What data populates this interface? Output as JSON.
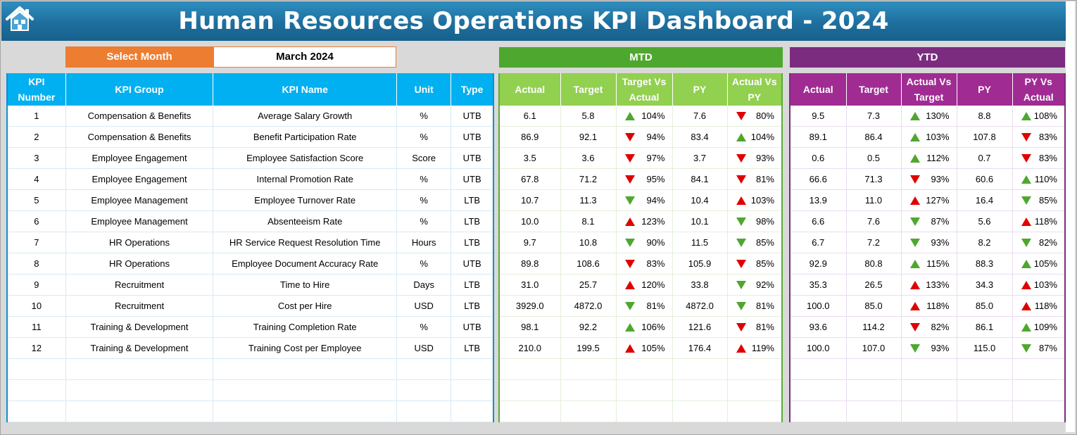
{
  "title": "Human Resources Operations KPI Dashboard - 2024",
  "home_icon": "home-icon",
  "select_month": {
    "label": "Select Month",
    "value": "March 2024"
  },
  "sections": {
    "mtd": "MTD",
    "ytd": "YTD"
  },
  "colors": {
    "title_bar": "#1e6f9e",
    "select_label": "#ed7d31",
    "info_header": "#00b0f0",
    "mtd_banner": "#4ea72e",
    "mtd_header": "#92d050",
    "ytd_banner": "#7b2c7f",
    "ytd_header": "#a02b93",
    "arrow_green": "#4ea72e",
    "arrow_red": "#e00000"
  },
  "info_headers": [
    "KPI Number",
    "KPI Group",
    "KPI Name",
    "Unit",
    "Type"
  ],
  "mtd_headers": [
    "Actual",
    "Target",
    "Target Vs Actual",
    "PY",
    "Actual Vs PY"
  ],
  "ytd_headers": [
    "Actual",
    "Target",
    "Actual Vs Target",
    "PY",
    "PY Vs Actual"
  ],
  "rows": [
    {
      "num": "1",
      "group": "Compensation & Benefits",
      "name": "Average Salary Growth",
      "unit": "%",
      "type": "UTB",
      "mtd": {
        "actual": "6.1",
        "target": "5.8",
        "tva": "104%",
        "tva_icon": "up-green",
        "py": "7.6",
        "avp": "80%",
        "avp_icon": "down-red"
      },
      "ytd": {
        "actual": "9.5",
        "target": "7.3",
        "avt": "130%",
        "avt_icon": "up-green",
        "py": "8.8",
        "pva": "108%",
        "pva_icon": "up-green"
      }
    },
    {
      "num": "2",
      "group": "Compensation & Benefits",
      "name": "Benefit Participation Rate",
      "unit": "%",
      "type": "UTB",
      "mtd": {
        "actual": "86.9",
        "target": "92.1",
        "tva": "94%",
        "tva_icon": "down-red",
        "py": "83.4",
        "avp": "104%",
        "avp_icon": "up-green"
      },
      "ytd": {
        "actual": "89.1",
        "target": "86.4",
        "avt": "103%",
        "avt_icon": "up-green",
        "py": "107.8",
        "pva": "83%",
        "pva_icon": "down-red"
      }
    },
    {
      "num": "3",
      "group": "Employee Engagement",
      "name": "Employee Satisfaction Score",
      "unit": "Score",
      "type": "UTB",
      "mtd": {
        "actual": "3.5",
        "target": "3.6",
        "tva": "97%",
        "tva_icon": "down-red",
        "py": "3.7",
        "avp": "93%",
        "avp_icon": "down-red"
      },
      "ytd": {
        "actual": "0.6",
        "target": "0.5",
        "avt": "112%",
        "avt_icon": "up-green",
        "py": "0.7",
        "pva": "83%",
        "pva_icon": "down-red"
      }
    },
    {
      "num": "4",
      "group": "Employee Engagement",
      "name": "Internal Promotion Rate",
      "unit": "%",
      "type": "UTB",
      "mtd": {
        "actual": "67.8",
        "target": "71.2",
        "tva": "95%",
        "tva_icon": "down-red",
        "py": "84.1",
        "avp": "81%",
        "avp_icon": "down-red"
      },
      "ytd": {
        "actual": "66.6",
        "target": "71.3",
        "avt": "93%",
        "avt_icon": "down-red",
        "py": "60.6",
        "pva": "110%",
        "pva_icon": "up-green"
      }
    },
    {
      "num": "5",
      "group": "Employee Management",
      "name": "Employee Turnover Rate",
      "unit": "%",
      "type": "LTB",
      "mtd": {
        "actual": "10.7",
        "target": "11.3",
        "tva": "94%",
        "tva_icon": "down-green",
        "py": "10.4",
        "avp": "103%",
        "avp_icon": "up-red"
      },
      "ytd": {
        "actual": "13.9",
        "target": "11.0",
        "avt": "127%",
        "avt_icon": "up-red",
        "py": "16.4",
        "pva": "85%",
        "pva_icon": "down-green"
      }
    },
    {
      "num": "6",
      "group": "Employee Management",
      "name": "Absenteeism Rate",
      "unit": "%",
      "type": "LTB",
      "mtd": {
        "actual": "10.0",
        "target": "8.1",
        "tva": "123%",
        "tva_icon": "up-red",
        "py": "10.1",
        "avp": "98%",
        "avp_icon": "down-green"
      },
      "ytd": {
        "actual": "6.6",
        "target": "7.6",
        "avt": "87%",
        "avt_icon": "down-green",
        "py": "5.6",
        "pva": "118%",
        "pva_icon": "up-red"
      }
    },
    {
      "num": "7",
      "group": "HR Operations",
      "name": "HR Service Request Resolution Time",
      "unit": "Hours",
      "type": "LTB",
      "mtd": {
        "actual": "9.7",
        "target": "10.8",
        "tva": "90%",
        "tva_icon": "down-green",
        "py": "11.5",
        "avp": "85%",
        "avp_icon": "down-green"
      },
      "ytd": {
        "actual": "6.7",
        "target": "7.2",
        "avt": "93%",
        "avt_icon": "down-green",
        "py": "8.2",
        "pva": "82%",
        "pva_icon": "down-green"
      }
    },
    {
      "num": "8",
      "group": "HR Operations",
      "name": "Employee Document Accuracy Rate",
      "unit": "%",
      "type": "UTB",
      "mtd": {
        "actual": "89.8",
        "target": "108.6",
        "tva": "83%",
        "tva_icon": "down-red",
        "py": "105.9",
        "avp": "85%",
        "avp_icon": "down-red"
      },
      "ytd": {
        "actual": "92.9",
        "target": "80.8",
        "avt": "115%",
        "avt_icon": "up-green",
        "py": "88.3",
        "pva": "105%",
        "pva_icon": "up-green"
      }
    },
    {
      "num": "9",
      "group": "Recruitment",
      "name": "Time to Hire",
      "unit": "Days",
      "type": "LTB",
      "mtd": {
        "actual": "31.0",
        "target": "25.7",
        "tva": "120%",
        "tva_icon": "up-red",
        "py": "33.8",
        "avp": "92%",
        "avp_icon": "down-green"
      },
      "ytd": {
        "actual": "35.3",
        "target": "26.5",
        "avt": "133%",
        "avt_icon": "up-red",
        "py": "34.3",
        "pva": "103%",
        "pva_icon": "up-red"
      }
    },
    {
      "num": "10",
      "group": "Recruitment",
      "name": "Cost per Hire",
      "unit": "USD",
      "type": "LTB",
      "mtd": {
        "actual": "3929.0",
        "target": "4872.0",
        "tva": "81%",
        "tva_icon": "down-green",
        "py": "4872.0",
        "avp": "81%",
        "avp_icon": "down-green"
      },
      "ytd": {
        "actual": "100.0",
        "target": "85.0",
        "avt": "118%",
        "avt_icon": "up-red",
        "py": "85.0",
        "pva": "118%",
        "pva_icon": "up-red"
      }
    },
    {
      "num": "11",
      "group": "Training & Development",
      "name": "Training Completion Rate",
      "unit": "%",
      "type": "UTB",
      "mtd": {
        "actual": "98.1",
        "target": "92.2",
        "tva": "106%",
        "tva_icon": "up-green",
        "py": "121.6",
        "avp": "81%",
        "avp_icon": "down-red"
      },
      "ytd": {
        "actual": "93.6",
        "target": "114.2",
        "avt": "82%",
        "avt_icon": "down-red",
        "py": "86.1",
        "pva": "109%",
        "pva_icon": "up-green"
      }
    },
    {
      "num": "12",
      "group": "Training & Development",
      "name": "Training Cost per Employee",
      "unit": "USD",
      "type": "LTB",
      "mtd": {
        "actual": "210.0",
        "target": "199.5",
        "tva": "105%",
        "tva_icon": "up-red",
        "py": "176.4",
        "avp": "119%",
        "avp_icon": "up-red"
      },
      "ytd": {
        "actual": "100.0",
        "target": "107.0",
        "avt": "93%",
        "avt_icon": "down-green",
        "py": "115.0",
        "pva": "87%",
        "pva_icon": "down-green"
      }
    }
  ]
}
